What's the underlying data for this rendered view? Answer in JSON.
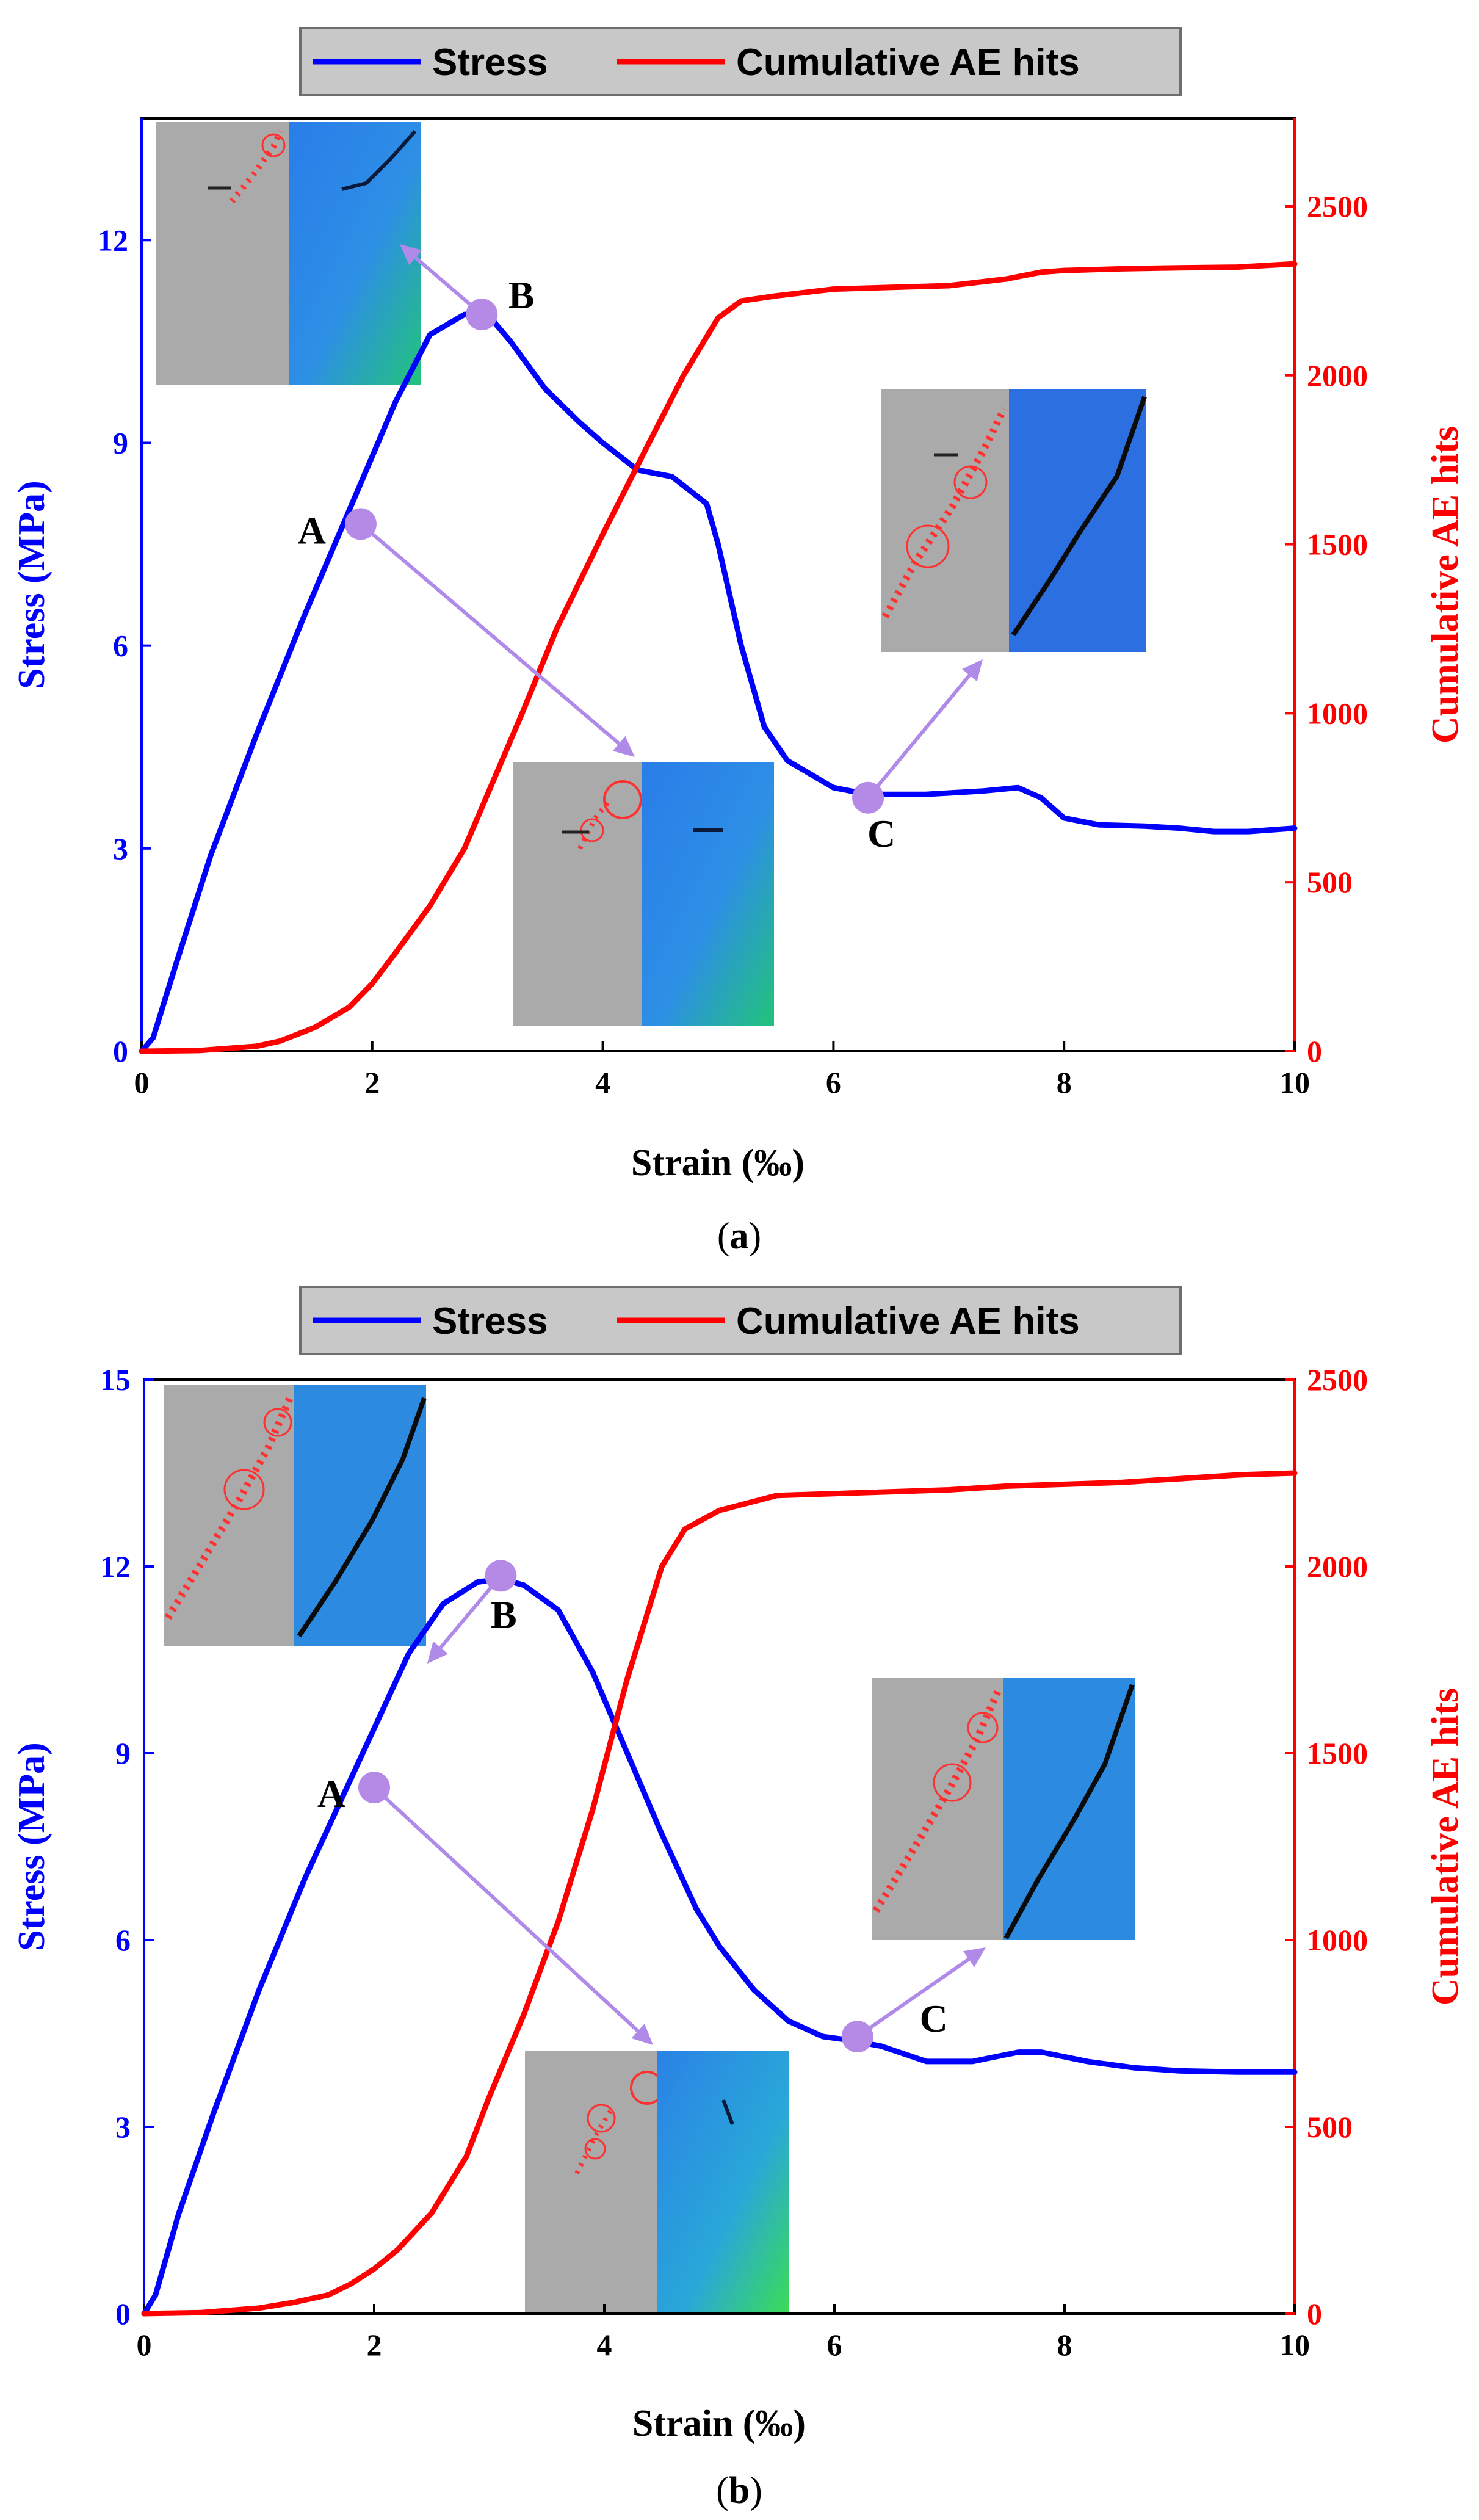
{
  "chart_data": [
    {
      "panel": "a",
      "type": "line",
      "caption": "a",
      "xlabel": "Strain (‰)",
      "ylabel_left": "Stress (MPa)",
      "ylabel_right": "Cumulative AE hits",
      "xlim": [
        0,
        10
      ],
      "ylim_left": [
        0,
        13.8
      ],
      "ylim_right": [
        0,
        2760
      ],
      "xticks": [
        0,
        2,
        4,
        6,
        8,
        10
      ],
      "yticks_left": [
        0,
        3,
        6,
        9,
        12
      ],
      "yticks_right": [
        0,
        500,
        1000,
        1500,
        2000,
        2500
      ],
      "legend": [
        "Stress",
        "Cumulative AE hits"
      ],
      "series": [
        {
          "name": "Stress",
          "axis": "left",
          "color": "#0000ff",
          "x": [
            0,
            0.1,
            0.3,
            0.6,
            1.0,
            1.4,
            1.8,
            2.2,
            2.5,
            2.8,
            3.0,
            3.2,
            3.5,
            3.8,
            4.0,
            4.3,
            4.6,
            4.9,
            5.0,
            5.2,
            5.4,
            5.6,
            5.8,
            6.0,
            6.3,
            6.8,
            7.3,
            7.6,
            7.8,
            8.0,
            8.3,
            8.7,
            9.0,
            9.3,
            9.6,
            10.0
          ],
          "y": [
            0,
            0.2,
            1.3,
            2.9,
            4.7,
            6.4,
            8.0,
            9.6,
            10.6,
            10.9,
            10.9,
            10.5,
            9.8,
            9.3,
            9.0,
            8.6,
            8.5,
            8.1,
            7.5,
            6.0,
            4.8,
            4.3,
            4.1,
            3.9,
            3.8,
            3.8,
            3.85,
            3.9,
            3.75,
            3.45,
            3.35,
            3.33,
            3.3,
            3.25,
            3.25,
            3.3
          ]
        },
        {
          "name": "Cumulative AE hits",
          "axis": "right",
          "color": "#ff0000",
          "x": [
            0,
            0.5,
            1.0,
            1.2,
            1.5,
            1.8,
            2.0,
            2.2,
            2.5,
            2.8,
            3.0,
            3.3,
            3.6,
            4.0,
            4.4,
            4.7,
            5.0,
            5.2,
            5.5,
            6.0,
            6.5,
            7.0,
            7.5,
            7.8,
            8.0,
            8.5,
            9.0,
            9.5,
            10.0
          ],
          "y": [
            0,
            2,
            15,
            30,
            70,
            130,
            200,
            290,
            430,
            600,
            760,
            1000,
            1250,
            1530,
            1800,
            2000,
            2170,
            2220,
            2235,
            2255,
            2260,
            2265,
            2285,
            2305,
            2310,
            2315,
            2318,
            2320,
            2330
          ]
        }
      ],
      "annotations": [
        {
          "label": "A",
          "x": 1.9,
          "y": 7.8
        },
        {
          "label": "B",
          "x": 2.95,
          "y": 10.9
        },
        {
          "label": "C",
          "x": 6.3,
          "y": 3.75
        }
      ]
    },
    {
      "panel": "b",
      "type": "line",
      "caption": "b",
      "xlabel": "Strain (‰)",
      "ylabel_left": "Stress (MPa)",
      "ylabel_right": "Cumulative AE hits",
      "xlim": [
        0,
        10
      ],
      "ylim_left": [
        0,
        15
      ],
      "ylim_right": [
        0,
        2500
      ],
      "xticks": [
        0,
        2,
        4,
        6,
        8,
        10
      ],
      "yticks_left": [
        0,
        3,
        6,
        9,
        12,
        15
      ],
      "yticks_right": [
        0,
        500,
        1000,
        1500,
        2000,
        2500
      ],
      "legend": [
        "Stress",
        "Cumulative AE hits"
      ],
      "series": [
        {
          "name": "Stress",
          "axis": "left",
          "color": "#0000ff",
          "x": [
            0,
            0.1,
            0.3,
            0.6,
            1.0,
            1.4,
            1.8,
            2.0,
            2.3,
            2.6,
            2.9,
            3.1,
            3.3,
            3.6,
            3.9,
            4.2,
            4.5,
            4.8,
            5.0,
            5.3,
            5.6,
            5.9,
            6.1,
            6.4,
            6.8,
            7.2,
            7.6,
            7.8,
            8.2,
            8.6,
            9.0,
            9.5,
            10.0
          ],
          "y": [
            0,
            0.3,
            1.6,
            3.2,
            5.2,
            7.0,
            8.6,
            9.4,
            10.6,
            11.4,
            11.75,
            11.8,
            11.7,
            11.3,
            10.3,
            9.0,
            7.7,
            6.5,
            5.9,
            5.2,
            4.7,
            4.45,
            4.4,
            4.3,
            4.05,
            4.05,
            4.2,
            4.2,
            4.05,
            3.95,
            3.9,
            3.88,
            3.88
          ]
        },
        {
          "name": "Cumulative AE hits",
          "axis": "right",
          "color": "#ff0000",
          "x": [
            0,
            0.5,
            1.0,
            1.3,
            1.6,
            1.8,
            2.0,
            2.2,
            2.5,
            2.8,
            3.0,
            3.3,
            3.6,
            3.9,
            4.2,
            4.5,
            4.7,
            5.0,
            5.5,
            6.0,
            7.0,
            7.5,
            8.0,
            8.5,
            9.0,
            9.5,
            10.0
          ],
          "y": [
            0,
            3,
            15,
            30,
            50,
            80,
            120,
            170,
            270,
            420,
            580,
            800,
            1050,
            1350,
            1700,
            2000,
            2100,
            2150,
            2190,
            2195,
            2205,
            2215,
            2220,
            2225,
            2235,
            2245,
            2250
          ]
        }
      ],
      "annotations": [
        {
          "label": "A",
          "x": 2.0,
          "y": 8.45
        },
        {
          "label": "B",
          "x": 3.1,
          "y": 11.85
        },
        {
          "label": "C",
          "x": 6.2,
          "y": 4.45
        }
      ]
    }
  ]
}
